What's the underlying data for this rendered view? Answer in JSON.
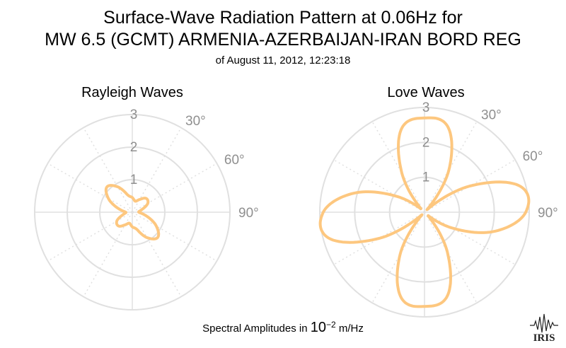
{
  "title": {
    "line1": "Surface-Wave Radiation Pattern at 0.06Hz for",
    "line2": "MW 6.5 (GCMT) ARMENIA-AZERBAIJAN-IRAN BORD REG",
    "line3": "of August 11, 2012, 12:23:18"
  },
  "footer": {
    "prefix": "Spectral Amplitudes in ",
    "base": "10",
    "exponent": "−2",
    "unit": " m/Hz"
  },
  "logo_text": "IRIS",
  "colors": {
    "pattern": "#fdc77f",
    "grid": "#e0e0e0",
    "tick_text": "#8f8f8f"
  },
  "chart_data": [
    {
      "type": "polar",
      "title": "Rayleigh Waves",
      "radial_ticks": [
        "1",
        "2",
        "3"
      ],
      "rmax": 3,
      "angle_ticks": [
        "30°",
        "60°",
        "90°"
      ],
      "angle_zero": "top",
      "direction": "clockwise",
      "series": [
        {
          "azimuth_deg": [
            0,
            15,
            30,
            45,
            60,
            75,
            90,
            105,
            120,
            135,
            150,
            165,
            180,
            195,
            210,
            225,
            240,
            255,
            270,
            285,
            300,
            315,
            330,
            345
          ],
          "amplitude": [
            0.45,
            0.35,
            0.45,
            0.6,
            0.55,
            0.3,
            0.2,
            0.45,
            0.85,
            1.1,
            0.9,
            0.55,
            0.45,
            0.35,
            0.45,
            0.6,
            0.55,
            0.3,
            0.2,
            0.45,
            0.85,
            1.1,
            0.9,
            0.55
          ]
        }
      ]
    },
    {
      "type": "polar",
      "title": "Love Waves",
      "radial_ticks": [
        "1",
        "2",
        "3"
      ],
      "rmax": 3,
      "angle_ticks": [
        "30°",
        "60°",
        "90°"
      ],
      "angle_zero": "top",
      "direction": "clockwise",
      "series": [
        {
          "azimuth_deg": [
            0,
            15,
            30,
            45,
            60,
            75,
            90,
            105,
            120,
            135,
            150,
            165,
            180,
            195,
            210,
            225,
            240,
            255,
            270,
            285,
            300,
            315,
            330,
            345
          ],
          "amplitude": [
            2.7,
            2.55,
            1.4,
            0.1,
            1.5,
            2.85,
            2.9,
            2.1,
            0.9,
            0.15,
            1.3,
            2.5,
            2.7,
            2.55,
            1.4,
            0.1,
            1.5,
            2.85,
            2.9,
            2.1,
            0.9,
            0.15,
            1.3,
            2.5
          ]
        }
      ]
    }
  ]
}
